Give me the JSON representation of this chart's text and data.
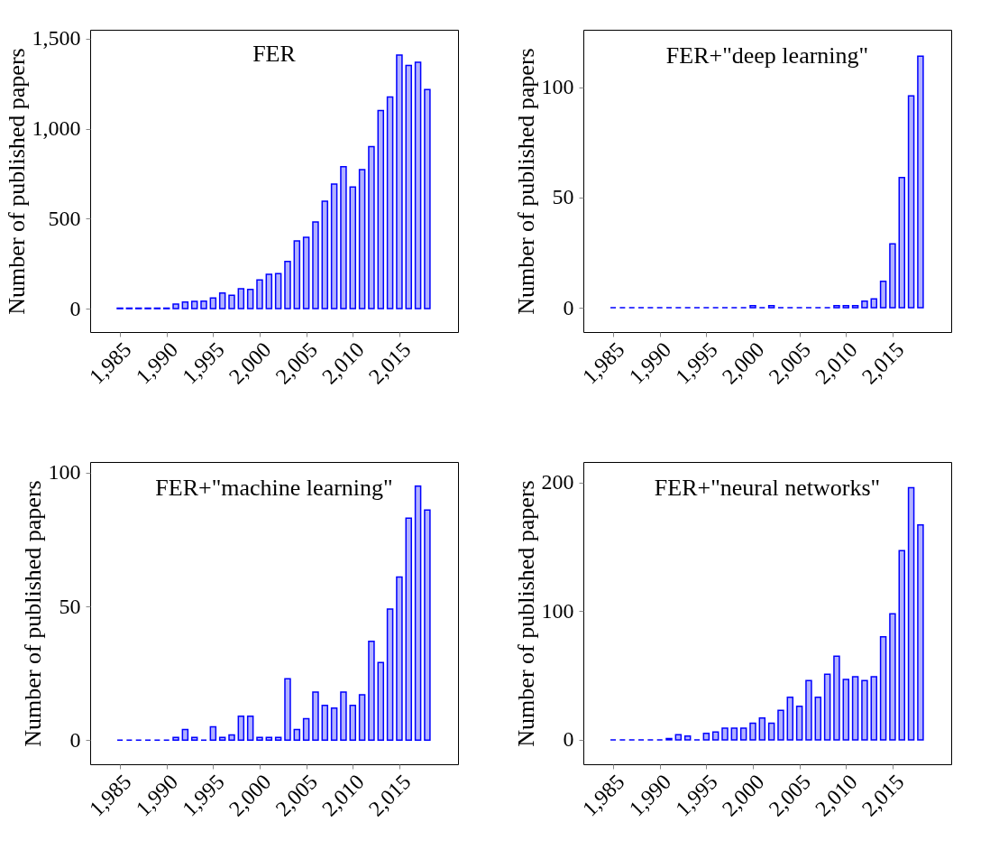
{
  "chart_data": [
    {
      "type": "bar",
      "title": "FER",
      "ylabel": "Number of published papers",
      "color": "#0000ff",
      "x": [
        1985,
        1986,
        1987,
        1988,
        1989,
        1990,
        1991,
        1992,
        1993,
        1994,
        1995,
        1996,
        1997,
        1998,
        1999,
        2000,
        2001,
        2002,
        2003,
        2004,
        2005,
        2006,
        2007,
        2008,
        2009,
        2010,
        2011,
        2012,
        2013,
        2014,
        2015,
        2016,
        2017,
        2018
      ],
      "values": [
        3,
        3,
        3,
        3,
        3,
        3,
        25,
        37,
        40,
        42,
        59,
        87,
        74,
        111,
        107,
        159,
        191,
        195,
        263,
        376,
        396,
        482,
        597,
        693,
        789,
        676,
        773,
        901,
        1101,
        1176,
        1409,
        1352,
        1369,
        1218
      ],
      "xlim": [
        1981.8,
        2021.3
      ],
      "xticks": [
        {
          "value": 1985,
          "label": "1,985"
        },
        {
          "value": 1990,
          "label": "1,990"
        },
        {
          "value": 1995,
          "label": "1,995"
        },
        {
          "value": 2000,
          "label": "2,000"
        },
        {
          "value": 2005,
          "label": "2,005"
        },
        {
          "value": 2010,
          "label": "2,010"
        },
        {
          "value": 2015,
          "label": "2,015"
        }
      ],
      "ylim": [
        -130,
        1550
      ],
      "yticks": [
        0,
        500,
        {
          "value": 1000,
          "label": "1,000"
        },
        {
          "value": 1500,
          "label": "1,500"
        }
      ]
    },
    {
      "type": "bar",
      "title": "FER+\"deep learning\"",
      "ylabel": "Number of published papers",
      "color": "#0000ff",
      "x": [
        1985,
        1986,
        1987,
        1988,
        1989,
        1990,
        1991,
        1992,
        1993,
        1994,
        1995,
        1996,
        1997,
        1998,
        1999,
        2000,
        2001,
        2002,
        2003,
        2004,
        2005,
        2006,
        2007,
        2008,
        2009,
        2010,
        2011,
        2012,
        2013,
        2014,
        2015,
        2016,
        2017,
        2018
      ],
      "values": [
        0,
        0,
        0,
        0,
        0,
        0,
        0,
        0,
        0,
        0,
        0,
        0,
        0,
        0,
        0,
        1,
        0,
        1,
        0,
        0,
        0,
        0,
        0,
        0,
        1,
        1,
        1,
        3,
        4,
        12,
        29,
        59,
        96,
        114
      ],
      "xlim": [
        1981.8,
        2021.3
      ],
      "xticks": [
        {
          "value": 1985,
          "label": "1,985"
        },
        {
          "value": 1990,
          "label": "1,990"
        },
        {
          "value": 1995,
          "label": "1,995"
        },
        {
          "value": 2000,
          "label": "2,000"
        },
        {
          "value": 2005,
          "label": "2,005"
        },
        {
          "value": 2010,
          "label": "2,010"
        },
        {
          "value": 2015,
          "label": "2,015"
        }
      ],
      "ylim": [
        -11,
        126
      ],
      "yticks": [
        0,
        50,
        100
      ]
    },
    {
      "type": "bar",
      "title": "FER+\"machine learning\"",
      "ylabel": "Number of published papers",
      "color": "#0000ff",
      "x": [
        1985,
        1986,
        1987,
        1988,
        1989,
        1990,
        1991,
        1992,
        1993,
        1994,
        1995,
        1996,
        1997,
        1998,
        1999,
        2000,
        2001,
        2002,
        2003,
        2004,
        2005,
        2006,
        2007,
        2008,
        2009,
        2010,
        2011,
        2012,
        2013,
        2014,
        2015,
        2016,
        2017,
        2018
      ],
      "values": [
        0,
        0,
        0,
        0,
        0,
        0,
        1,
        4,
        1,
        0,
        5,
        1,
        2,
        9,
        9,
        1,
        1,
        1,
        23,
        4,
        8,
        18,
        13,
        12,
        18,
        13,
        17,
        37,
        29,
        49,
        61,
        83,
        95,
        86
      ],
      "xlim": [
        1981.8,
        2021.3
      ],
      "xticks": [
        {
          "value": 1985,
          "label": "1,985"
        },
        {
          "value": 1990,
          "label": "1,990"
        },
        {
          "value": 1995,
          "label": "1,995"
        },
        {
          "value": 2000,
          "label": "2,000"
        },
        {
          "value": 2005,
          "label": "2,005"
        },
        {
          "value": 2010,
          "label": "2,010"
        },
        {
          "value": 2015,
          "label": "2,015"
        }
      ],
      "ylim": [
        -9,
        104
      ],
      "yticks": [
        0,
        50,
        100
      ]
    },
    {
      "type": "bar",
      "title": "FER+\"neural networks\"",
      "ylabel": "Number of published papers",
      "color": "#0000ff",
      "x": [
        1985,
        1986,
        1987,
        1988,
        1989,
        1990,
        1991,
        1992,
        1993,
        1994,
        1995,
        1996,
        1997,
        1998,
        1999,
        2000,
        2001,
        2002,
        2003,
        2004,
        2005,
        2006,
        2007,
        2008,
        2009,
        2010,
        2011,
        2012,
        2013,
        2014,
        2015,
        2016,
        2017,
        2018
      ],
      "values": [
        0,
        0,
        0,
        0,
        0,
        0,
        1,
        4,
        3,
        0,
        5,
        6,
        9,
        9,
        9,
        13,
        17,
        13,
        23,
        33,
        26,
        46,
        33,
        51,
        65,
        47,
        49,
        46,
        49,
        80,
        98,
        147,
        196,
        167
      ],
      "xlim": [
        1981.8,
        2021.3
      ],
      "xticks": [
        {
          "value": 1985,
          "label": "1,985"
        },
        {
          "value": 1990,
          "label": "1,990"
        },
        {
          "value": 1995,
          "label": "1,995"
        },
        {
          "value": 2000,
          "label": "2,000"
        },
        {
          "value": 2005,
          "label": "2,005"
        },
        {
          "value": 2010,
          "label": "2,010"
        },
        {
          "value": 2015,
          "label": "2,015"
        }
      ],
      "ylim": [
        -19,
        216
      ],
      "yticks": [
        0,
        100,
        200
      ]
    }
  ]
}
